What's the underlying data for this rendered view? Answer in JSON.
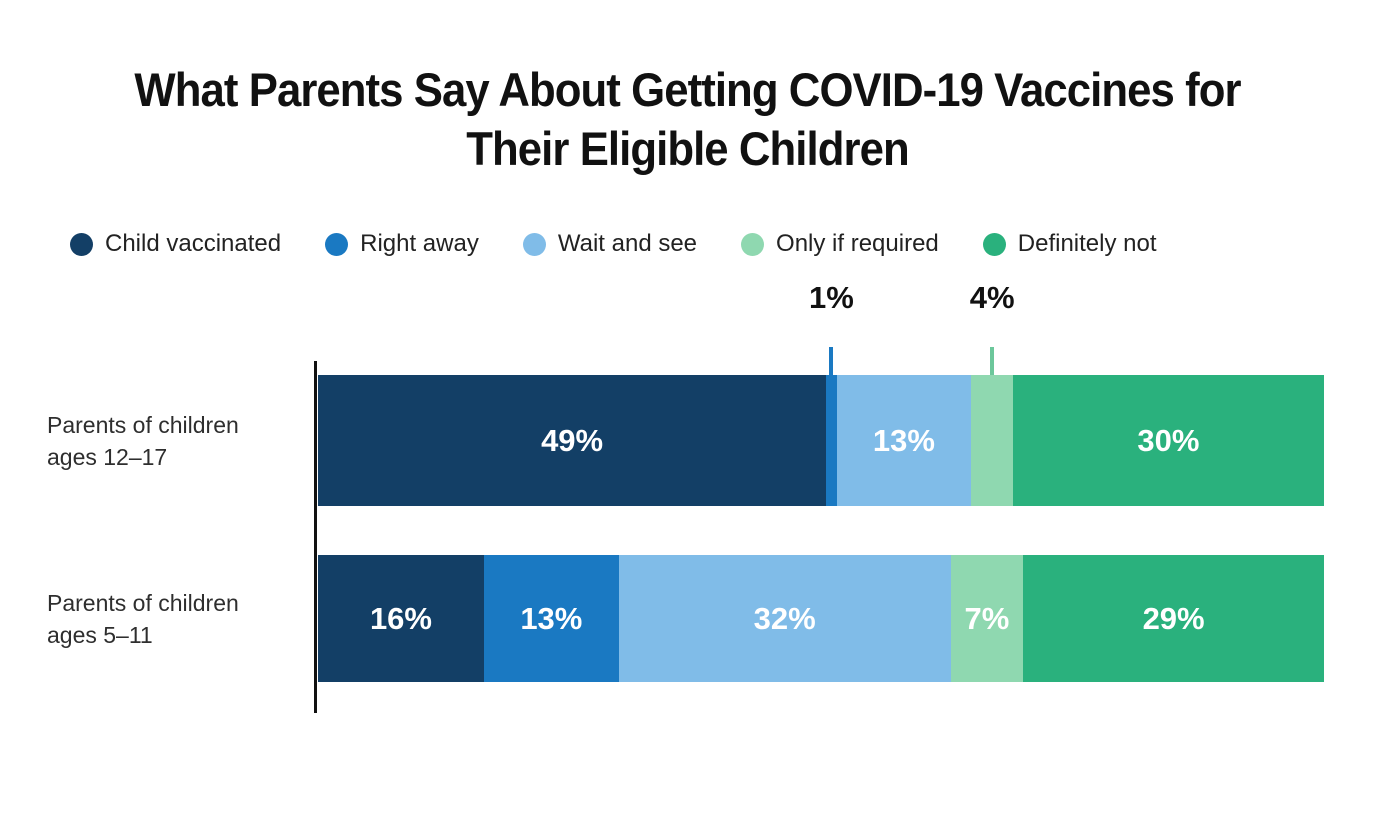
{
  "title": "What Parents Say About Getting COVID-19 Vaccines for Their Eligible Children",
  "title_lines": [
    "What Parents Say About Getting COVID-19 Vaccines for",
    "Their Eligible Children"
  ],
  "chart_data": {
    "type": "bar",
    "subtype": "horizontal-stacked",
    "title": "What Parents Say About Getting COVID-19 Vaccines for Their Eligible Children",
    "unit": "%",
    "axis_total": 97,
    "legend_position": "top",
    "grid": false,
    "legend": [
      {
        "label": "Child vaccinated",
        "color": "#133F66"
      },
      {
        "label": "Right away",
        "color": "#1A79C2"
      },
      {
        "label": "Wait and see",
        "color": "#80BCE8"
      },
      {
        "label": "Only if required",
        "color": "#8FD8B0"
      },
      {
        "label": "Definitely not",
        "color": "#2AB17D"
      }
    ],
    "rows": [
      {
        "label": "Parents of children ages 12–17",
        "label_lines": [
          "Parents of children",
          "ages 12–17"
        ],
        "values": [
          49,
          1,
          13,
          4,
          30
        ],
        "value_labels": [
          "49%",
          "1%",
          "13%",
          "4%",
          "30%"
        ]
      },
      {
        "label": "Parents of children ages 5–11",
        "label_lines": [
          "Parents of children",
          "ages 5–11"
        ],
        "values": [
          16,
          13,
          32,
          7,
          29
        ],
        "value_labels": [
          "16%",
          "13%",
          "32%",
          "7%",
          "29%"
        ]
      }
    ],
    "callouts": [
      {
        "row": 0,
        "segment": 1,
        "label": "1%",
        "tick_color": "#1A79C2"
      },
      {
        "row": 0,
        "segment": 3,
        "label": "4%",
        "tick_color": "#6CC79B"
      }
    ]
  }
}
